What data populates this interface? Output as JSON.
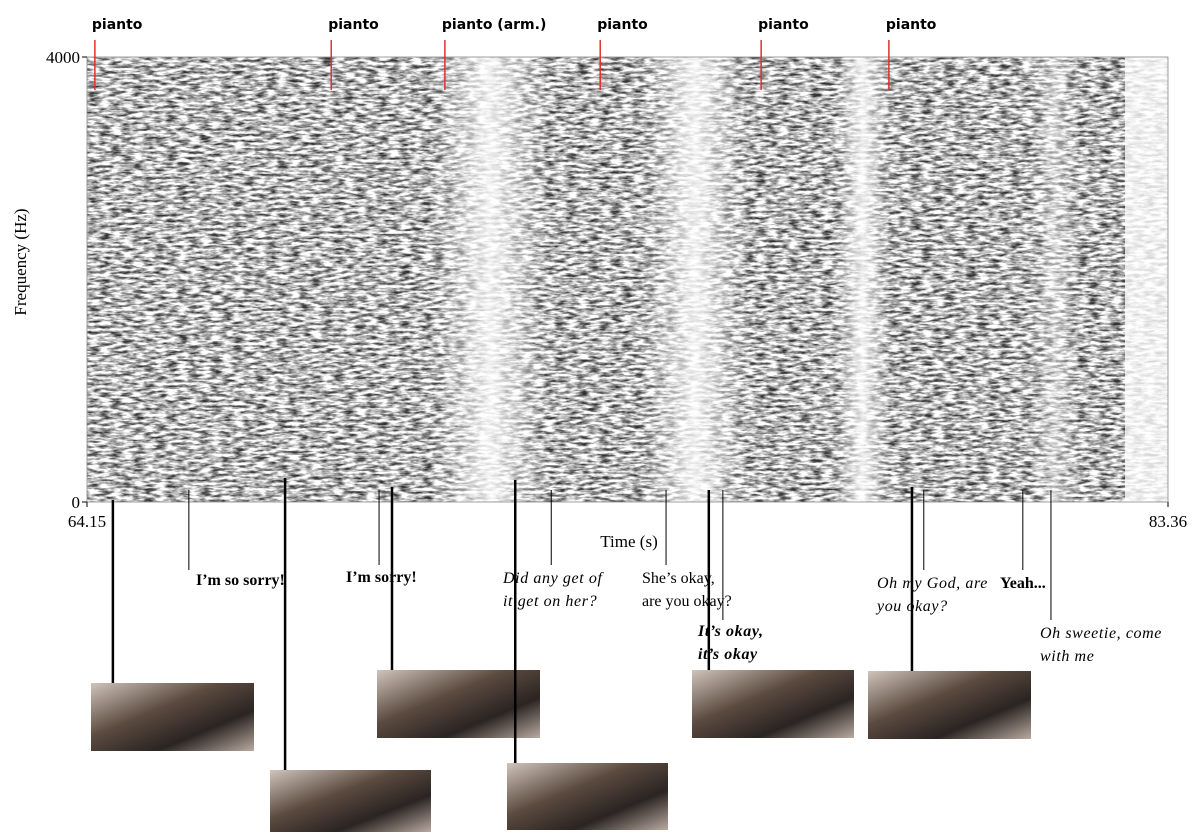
{
  "chart_data": {
    "type": "spectrogram",
    "xlabel": "Time (s)",
    "ylabel": "Frequency (Hz)",
    "xlim": [
      64.15,
      83.36
    ],
    "ylim": [
      0,
      4000
    ],
    "xticks": [
      64.15,
      83.36
    ],
    "yticks": [
      0,
      4000
    ],
    "marker_color": "#e03030",
    "markers": [
      {
        "label": "pianto",
        "time": 64.29
      },
      {
        "label": "pianto",
        "time": 68.49
      },
      {
        "label": "pianto (arm.)",
        "time": 70.51
      },
      {
        "label": "pianto",
        "time": 73.27
      },
      {
        "label": "pianto",
        "time": 76.13
      },
      {
        "label": "pianto",
        "time": 78.4
      }
    ],
    "utterances": [
      {
        "lines": [
          "I’m so sorry!"
        ],
        "style": "bold",
        "time": 65.96
      },
      {
        "lines": [
          "I’m sorry!"
        ],
        "style": "bold",
        "time": 69.34
      },
      {
        "lines": [
          "Did any get of",
          "it get on her?"
        ],
        "style": "italic",
        "time": 72.4
      },
      {
        "lines": [
          "She’s okay,",
          "are you okay?"
        ],
        "style": "normal",
        "time": 74.44
      },
      {
        "lines": [
          "It’s okay,",
          "it’s okay"
        ],
        "style": "bold-italic",
        "time": 75.45
      },
      {
        "lines": [
          "Oh my God, are",
          "you okay?"
        ],
        "style": "italic",
        "time": 79.02
      },
      {
        "lines": [
          "Yeah..."
        ],
        "style": "bold",
        "time": 80.78
      },
      {
        "lines": [
          "Oh sweetie, come",
          "with me"
        ],
        "style": "italic",
        "time": 81.28
      }
    ],
    "frames": [
      {
        "time": 64.61
      },
      {
        "time": 67.67
      },
      {
        "time": 69.57
      },
      {
        "time": 71.76
      },
      {
        "time": 75.2
      },
      {
        "time": 78.81
      }
    ]
  }
}
